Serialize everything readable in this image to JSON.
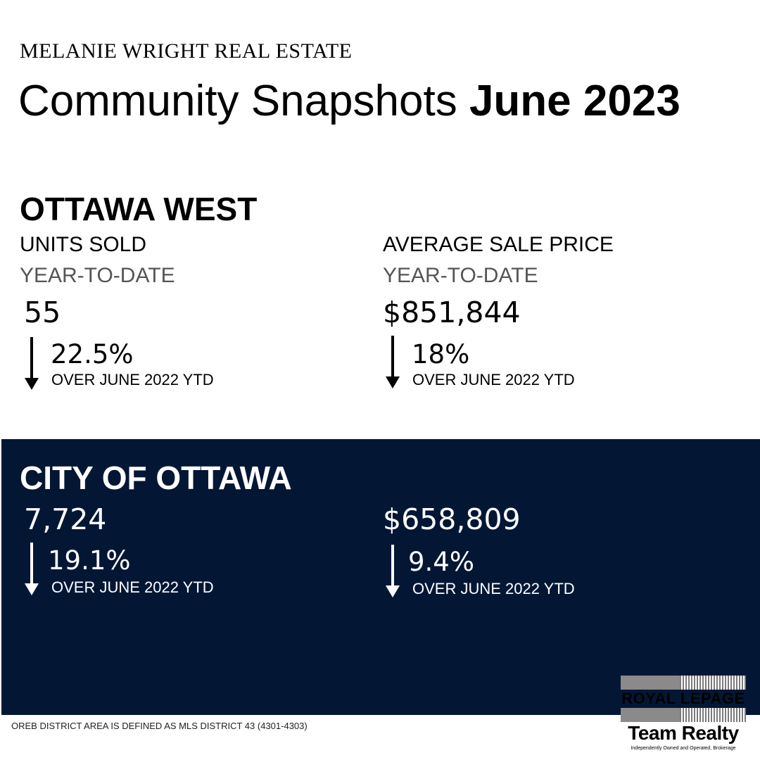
{
  "header": {
    "brand": "MELANIE WRIGHT REAL ESTATE",
    "title_light": "Community Snapshots ",
    "title_bold": "June 2023"
  },
  "ottawa_west": {
    "title": "OTTAWA WEST",
    "units": {
      "label": "UNITS SOLD",
      "period": "YEAR-TO-DATE",
      "value": "55",
      "change": "22.5%",
      "direction": "down",
      "comparison": "OVER JUNE 2022 YTD"
    },
    "price": {
      "label": "AVERAGE SALE PRICE",
      "period": "YEAR-TO-DATE",
      "value": "$851,844",
      "change": "18%",
      "direction": "down",
      "comparison": "OVER JUNE 2022 YTD"
    }
  },
  "city_of_ottawa": {
    "title": "CITY OF OTTAWA",
    "units": {
      "value": "7,724",
      "change": "19.1%",
      "direction": "down",
      "comparison": "OVER JUNE 2022 YTD"
    },
    "price": {
      "value": "$658,809",
      "change": "9.4%",
      "direction": "down",
      "comparison": "OVER JUNE 2022 YTD"
    }
  },
  "footnote": "OREB DISTRICT AREA IS DEFINED AS MLS DISTRICT 43 (4301-4303)",
  "logo": {
    "line1": "ROYAL LEPAGE",
    "line2": "Team Realty",
    "tagline": "Independently Owned and Operated, Brokerage"
  },
  "colors": {
    "panel": "#031735",
    "text": "#000000",
    "text_on_panel": "#ffffff"
  },
  "icons": {
    "change_arrow": "arrow-down-icon"
  }
}
